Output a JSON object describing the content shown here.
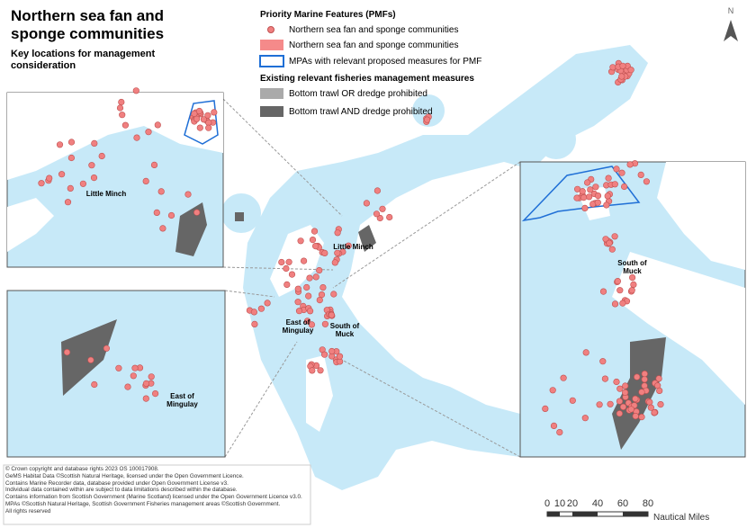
{
  "title": "Northern sea fan and sponge communities",
  "subtitle": "Key locations for management consideration",
  "legend": {
    "pmf_heading": "Priority Marine Features (PMFs)",
    "pmf_items": [
      "Northern sea fan and sponge communities",
      "Northern sea fan and sponge communities",
      "MPAs with relevant proposed measures for PMF"
    ],
    "fisheries_heading": "Existing relevant fisheries management measures",
    "fisheries_items": [
      "Bottom trawl OR dredge prohibited",
      "Bottom trawl AND dredge prohibited"
    ]
  },
  "map_labels": {
    "main": [
      "Little Minch",
      "East of Mingulay",
      "South of Muck"
    ],
    "inset_top_left": "Little Minch",
    "inset_bottom_left": "East of Mingulay",
    "inset_right": "South of Muck"
  },
  "north": "N",
  "scale": {
    "ticks": [
      0,
      10,
      20,
      40,
      60,
      80
    ],
    "unit": "Nautical Miles"
  },
  "copyright": [
    "© Crown copyright and database rights 2023 OS 100017908.",
    " GeMS Habitat Data ©Scottish Natural Heritage, licensed under the Open Government Licence.",
    "Contains Marine Recorder data, database provided under Open Government License v3.",
    "Individual data contained within are subject to data limitations described within the database.",
    "Contains information from Scottish Government (Marine Scotland) licensed under the Open Government Licence v3.0.",
    "MPAs ©Scottish Natural Heritage, Scottish Government Fisheries management areas ©Scottish Government.",
    "All rights reserved"
  ]
}
